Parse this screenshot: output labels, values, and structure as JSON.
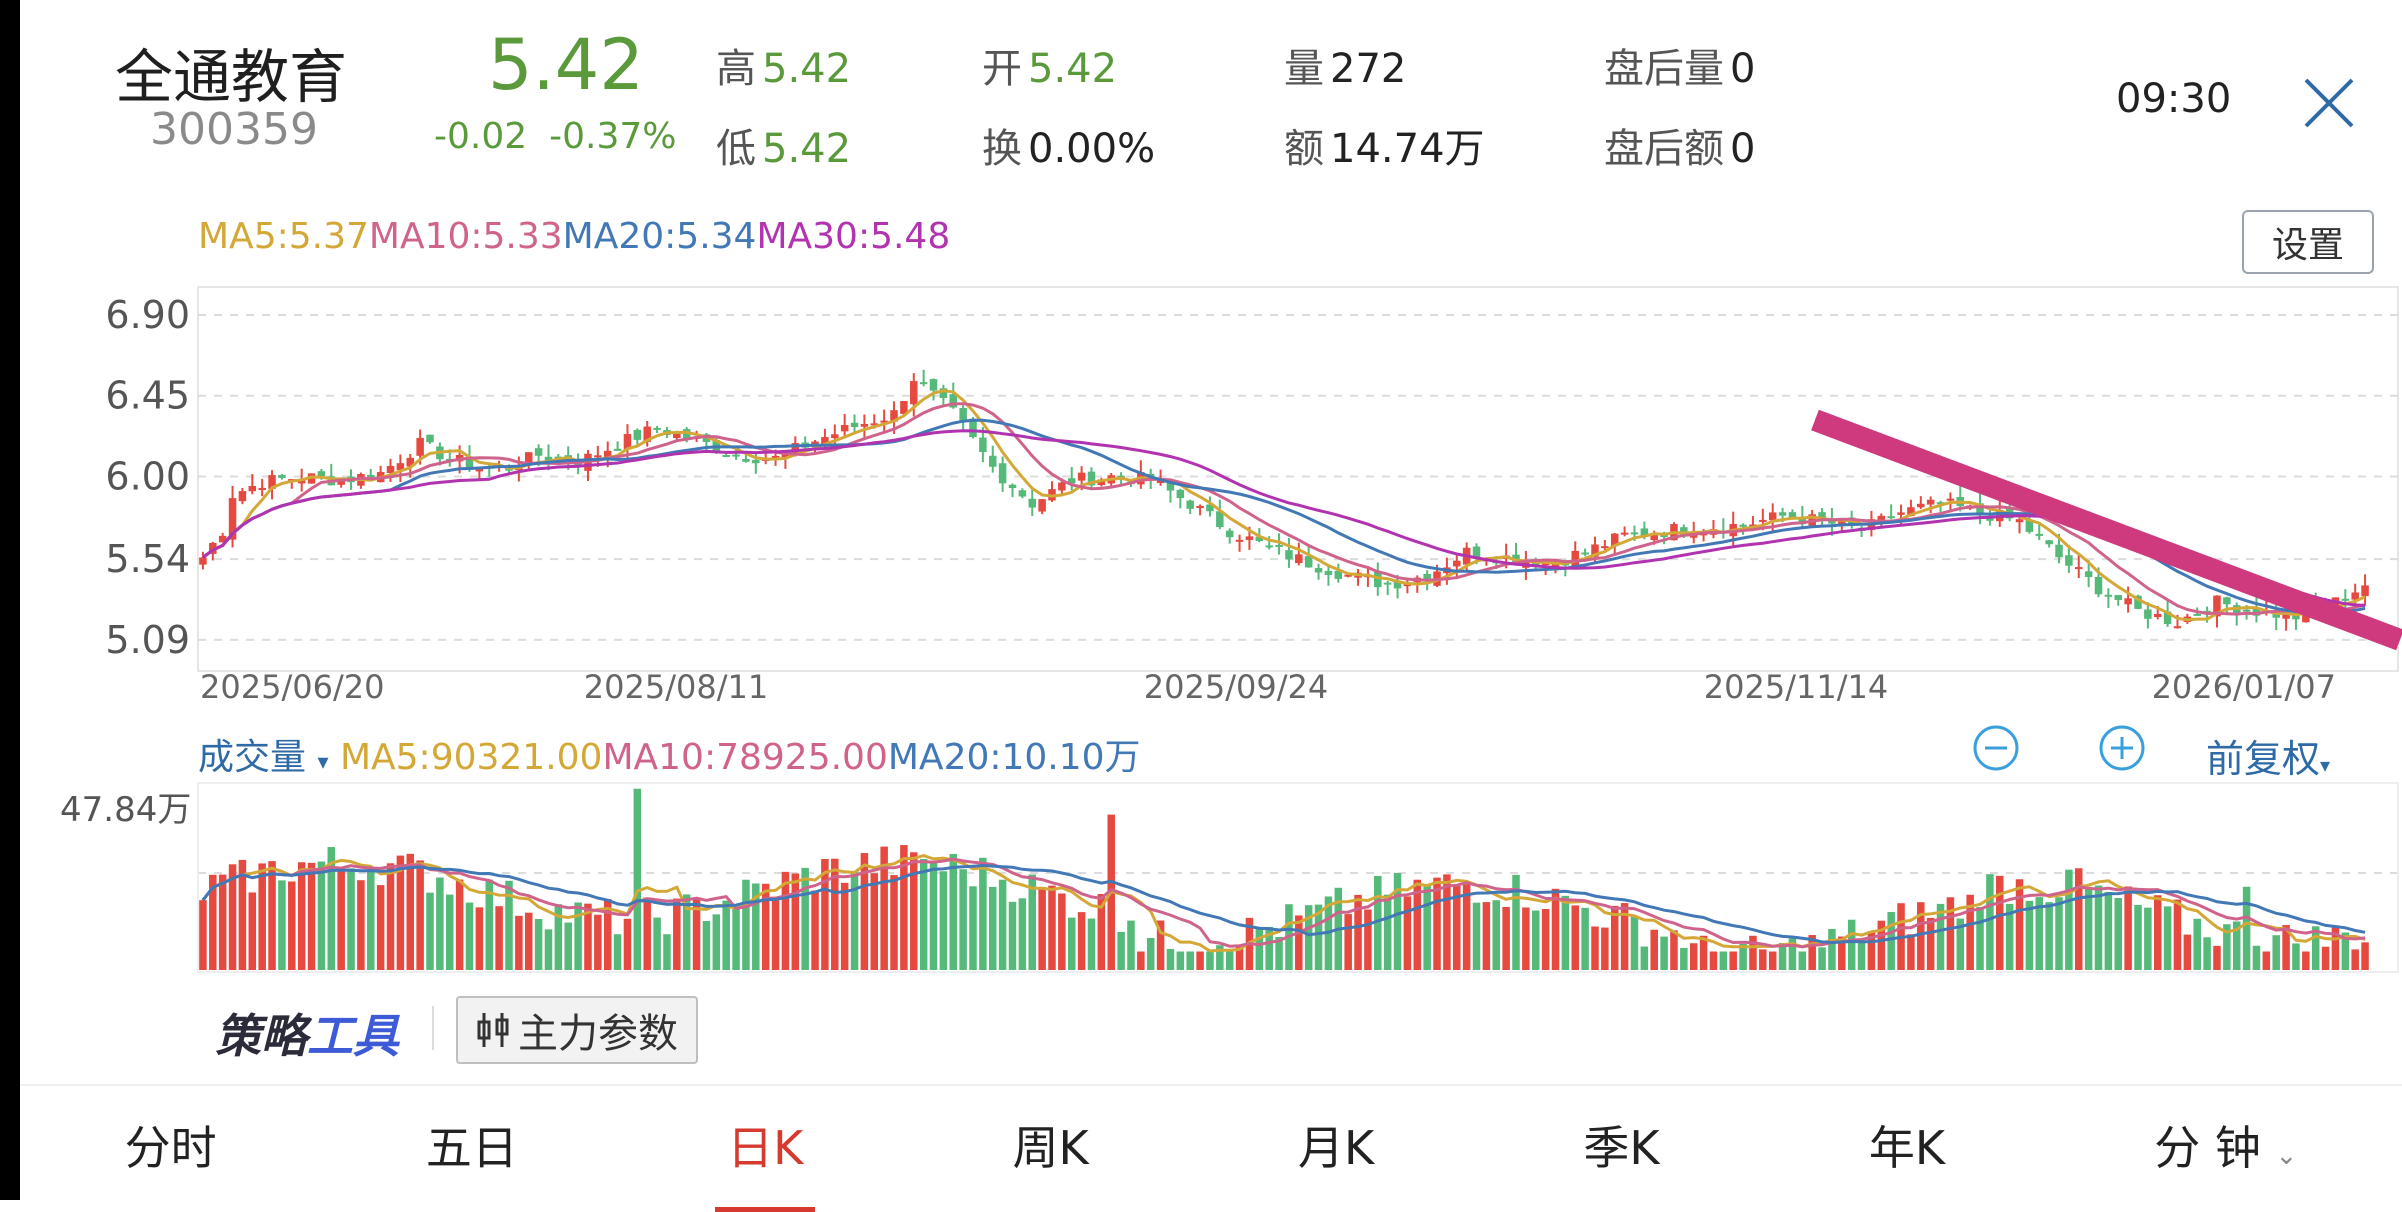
{
  "colors": {
    "up": "#e5493f",
    "down": "#55b97a",
    "ma5": "#d4a836",
    "ma10": "#d0638c",
    "ma20": "#4178b5",
    "ma30": "#b233b0",
    "trend": "#cf3a7e",
    "accent": "#d63a2e"
  },
  "stock": {
    "name": "全通教育",
    "code": "300359",
    "price": "5.42",
    "change": "-0.02",
    "change_pct": "-0.37%"
  },
  "quote": {
    "high_label": "高",
    "high": "5.42",
    "open_label": "开",
    "open": "5.42",
    "volume_label": "量",
    "volume": "272",
    "after_vol_label": "盘后量",
    "after_vol": "0",
    "low_label": "低",
    "low": "5.42",
    "turnover_label": "换",
    "turnover": "0.00%",
    "amount_label": "额",
    "amount": "14.74万",
    "after_amt_label": "盘后额",
    "after_amt": "0"
  },
  "time": "09:30",
  "close_icon": "close-x-icon",
  "kline": {
    "ma5": "MA5:5.37",
    "ma10": "MA10:5.33",
    "ma20": "MA20:5.34",
    "ma30": "MA30:5.48",
    "settings_label": "设置",
    "y_ticks": [
      "6.90",
      "6.45",
      "6.00",
      "5.54",
      "5.09"
    ],
    "x_ticks": [
      "2025/06/20",
      "2025/08/11",
      "2025/09/24",
      "2025/11/14",
      "2026/01/07"
    ]
  },
  "volume_panel": {
    "label": "成交量",
    "ma5": "MA5:90321.00",
    "ma10": "MA10:78925.00",
    "ma20": "MA20:10.10万",
    "max_label": "47.84万",
    "zoom_out_icon": "minus-circle-icon",
    "zoom_in_icon": "plus-circle-icon",
    "adjust_label": "前复权"
  },
  "tools": {
    "strategy_part1": "策略",
    "strategy_part2": "工具",
    "zhuli_label": "主力参数"
  },
  "tabs": [
    "分时",
    "五日",
    "日K",
    "周K",
    "月K",
    "季K",
    "年K",
    "分 钟"
  ],
  "active_tab": 2,
  "chart_data": {
    "type": "candlestick",
    "ylim": [
      4.95,
      7.0
    ],
    "x_labels": [
      "2025/06/20",
      "2025/08/11",
      "2025/09/24",
      "2025/11/14",
      "2026/01/07"
    ],
    "anchors": [
      [
        0,
        5.55
      ],
      [
        2,
        5.7
      ],
      [
        3,
        5.9
      ],
      [
        6,
        5.97
      ],
      [
        10,
        6.0
      ],
      [
        14,
        5.98
      ],
      [
        18,
        6.02
      ],
      [
        22,
        6.18
      ],
      [
        25,
        6.1
      ],
      [
        28,
        6.05
      ],
      [
        31,
        6.05
      ],
      [
        34,
        6.12
      ],
      [
        38,
        6.08
      ],
      [
        42,
        6.18
      ],
      [
        46,
        6.27
      ],
      [
        50,
        6.2
      ],
      [
        54,
        6.12
      ],
      [
        58,
        6.1
      ],
      [
        62,
        6.2
      ],
      [
        66,
        6.28
      ],
      [
        70,
        6.35
      ],
      [
        72,
        6.55
      ],
      [
        76,
        6.35
      ],
      [
        80,
        6.05
      ],
      [
        84,
        5.85
      ],
      [
        88,
        5.98
      ],
      [
        92,
        6.0
      ],
      [
        96,
        5.98
      ],
      [
        100,
        5.85
      ],
      [
        104,
        5.7
      ],
      [
        108,
        5.6
      ],
      [
        112,
        5.52
      ],
      [
        116,
        5.45
      ],
      [
        120,
        5.4
      ],
      [
        124,
        5.45
      ],
      [
        128,
        5.58
      ],
      [
        132,
        5.55
      ],
      [
        136,
        5.52
      ],
      [
        140,
        5.58
      ],
      [
        144,
        5.67
      ],
      [
        148,
        5.7
      ],
      [
        152,
        5.72
      ],
      [
        156,
        5.73
      ],
      [
        160,
        5.78
      ],
      [
        164,
        5.75
      ],
      [
        168,
        5.7
      ],
      [
        172,
        5.8
      ],
      [
        176,
        5.85
      ],
      [
        180,
        5.8
      ],
      [
        184,
        5.75
      ],
      [
        188,
        5.55
      ],
      [
        192,
        5.38
      ],
      [
        196,
        5.25
      ],
      [
        200,
        5.19
      ],
      [
        204,
        5.3
      ],
      [
        208,
        5.25
      ],
      [
        212,
        5.22
      ],
      [
        216,
        5.3
      ],
      [
        219,
        5.4
      ]
    ]
  }
}
